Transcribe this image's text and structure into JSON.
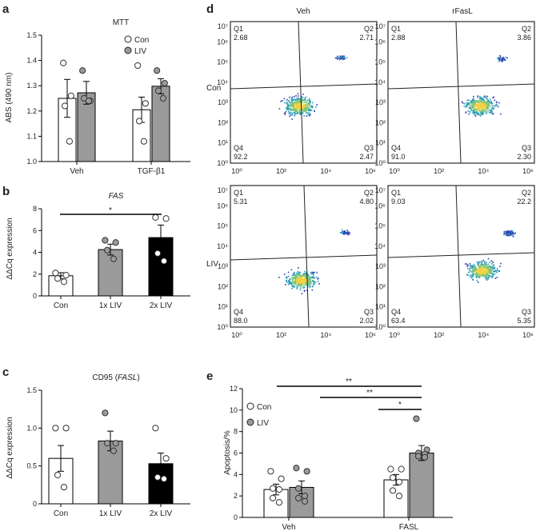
{
  "panels": {
    "a": {
      "letter": "a",
      "title": "MTT",
      "ylabel": "ABS (490 nm)",
      "ylim": [
        1.0,
        1.5
      ],
      "yticks": [
        "1.0",
        "1.1",
        "1.2",
        "1.3",
        "1.4",
        "1.5"
      ],
      "legend": [
        {
          "name": "Con",
          "color": "#ffffff"
        },
        {
          "name": "LIV",
          "color": "#9a9a9a"
        }
      ],
      "chart_data": {
        "type": "bar",
        "categories": [
          "Veh",
          "TGF-β1"
        ],
        "series": [
          {
            "name": "Con",
            "values": [
              1.25,
              1.205
            ],
            "errors": [
              0.075,
              0.05
            ],
            "points": [
              [
                1.39,
                1.26,
                1.22,
                1.08
              ],
              [
                1.38,
                1.23,
                1.16,
                1.08
              ]
            ]
          },
          {
            "name": "LIV",
            "values": [
              1.272,
              1.298
            ],
            "errors": [
              0.045,
              0.03
            ],
            "points": [
              [
                1.36,
                1.24,
                1.25,
                1.24
              ],
              [
                1.36,
                1.31,
                1.28,
                1.25
              ]
            ]
          }
        ]
      }
    },
    "b": {
      "letter": "b",
      "title": "FAS",
      "ylabel": "ΔΔCq expression",
      "ylim": [
        0,
        8
      ],
      "yticks": [
        "0",
        "2",
        "4",
        "6",
        "8"
      ],
      "sig": "*",
      "chart_data": {
        "type": "bar",
        "categories": [
          "Con",
          "1x LIV",
          "2x LIV"
        ],
        "colors": [
          "#ffffff",
          "#9a9a9a",
          "#000000"
        ],
        "values": [
          1.85,
          4.25,
          5.35
        ],
        "errors": [
          0.28,
          0.5,
          1.15
        ],
        "points": [
          [
            2.1,
            1.9,
            1.6,
            1.3
          ],
          [
            5.1,
            4.9,
            4.2,
            3.4
          ],
          [
            7.2,
            7.1,
            3.9,
            3.2
          ]
        ]
      }
    },
    "c": {
      "letter": "c",
      "title_prefix": "CD95 (",
      "title_gene": "FASL",
      "title_suffix": ")",
      "ylabel": "ΔΔCq expression",
      "ylim": [
        0,
        1.5
      ],
      "yticks": [
        "0",
        "0.5",
        "1.0",
        "1.5"
      ],
      "chart_data": {
        "type": "bar",
        "categories": [
          "Con",
          "1x LIV",
          "2x LIV"
        ],
        "colors": [
          "#ffffff",
          "#9a9a9a",
          "#000000"
        ],
        "values": [
          0.6,
          0.83,
          0.53
        ],
        "errors": [
          0.17,
          0.13,
          0.14
        ],
        "points": [
          [
            1.0,
            1.0,
            0.38,
            0.22
          ],
          [
            1.2,
            0.8,
            0.8,
            0.7
          ],
          [
            1.0,
            0.6,
            0.35,
            0.33
          ]
        ]
      }
    },
    "e": {
      "letter": "e",
      "ylabel": "Apoptosis/%",
      "ylim": [
        0,
        12
      ],
      "yticks": [
        "0",
        "2",
        "4",
        "6",
        "8",
        "10",
        "12"
      ],
      "legend": [
        {
          "name": "Con",
          "color": "#ffffff"
        },
        {
          "name": "LIV",
          "color": "#9a9a9a"
        }
      ],
      "sigs": [
        "**",
        "**",
        "*"
      ],
      "chart_data": {
        "type": "bar",
        "categories": [
          "Veh",
          "FASL"
        ],
        "series": [
          {
            "name": "Con",
            "values": [
              2.6,
              3.5
            ],
            "errors": [
              0.5,
              0.5
            ],
            "points": [
              [
                4.3,
                3.6,
                2.7,
                2.6,
                1.8,
                1.4
              ],
              [
                4.5,
                4.5,
                3.7,
                3.3,
                2.5,
                2.0
              ]
            ]
          },
          {
            "name": "LIV",
            "values": [
              2.8,
              6.0
            ],
            "errors": [
              0.6,
              0.7
            ],
            "points": [
              [
                4.6,
                4.3,
                2.7,
                2.0,
                1.8,
                1.5
              ],
              [
                9.2,
                6.3,
                6.0,
                5.9,
                5.7,
                5.6
              ]
            ]
          }
        ]
      }
    }
  },
  "flow": {
    "letter": "d",
    "col_titles": [
      "Veh",
      "rFasL"
    ],
    "row_labels": [
      "Con",
      "LIV"
    ],
    "yticks": [
      "10⁰",
      "10¹",
      "10²",
      "10³",
      "10⁴",
      "10⁵",
      "10⁶",
      "10⁷"
    ],
    "xticks": [
      "10⁰",
      "10²",
      "10⁴",
      "10⁶"
    ],
    "quadrant_names": [
      "Q1",
      "Q2",
      "Q3",
      "Q4"
    ],
    "plots": [
      {
        "q": [
          "2.68",
          "2.71",
          "2.47",
          "92.2"
        ]
      },
      {
        "q": [
          "2.88",
          "3.86",
          "2.30",
          "91.0"
        ]
      },
      {
        "q": [
          "5.31",
          "4.80",
          "2.02",
          "88.0"
        ]
      },
      {
        "q": [
          "9.03",
          "22.2",
          "5.35",
          "63.4"
        ]
      }
    ]
  }
}
